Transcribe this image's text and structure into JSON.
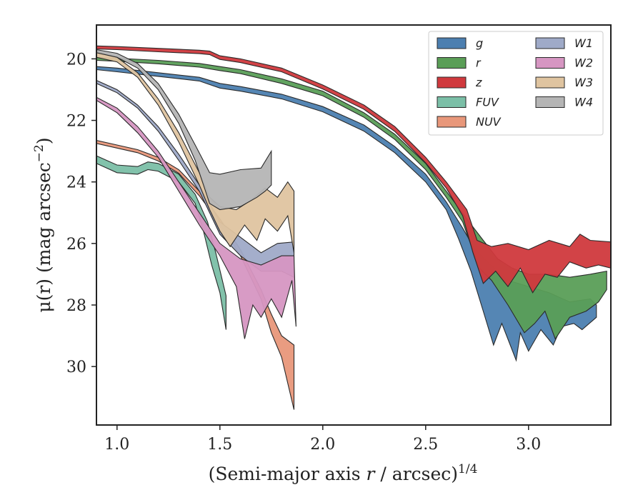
{
  "chart_data": {
    "type": "area",
    "xlabel_prefix": "(Semi-major axis ",
    "xlabel_var": "r",
    "xlabel_suffix": " / arcsec)",
    "xlabel_sup": "1/4",
    "ylabel_main": "μ(r) (mag arcsec",
    "ylabel_sup": "−2",
    "ylabel_close": ")",
    "xlim": [
      0.9,
      3.4
    ],
    "ylim": [
      31.9,
      18.9
    ],
    "y_inverted": true,
    "x_ticks": [
      "1.0",
      "1.5",
      "2.0",
      "2.5",
      "3.0"
    ],
    "x_tick_values": [
      1.0,
      1.5,
      2.0,
      2.5,
      3.0
    ],
    "y_ticks": [
      "20",
      "22",
      "24",
      "26",
      "28",
      "30"
    ],
    "y_tick_values": [
      20,
      22,
      24,
      26,
      28,
      30
    ],
    "grid": false,
    "legend_position": "top-right",
    "legend_columns": 2,
    "series": [
      {
        "name": "g",
        "color": "#4c7fb0",
        "upper": [
          [
            0.9,
            20.25
          ],
          [
            1.0,
            20.3
          ],
          [
            1.2,
            20.45
          ],
          [
            1.4,
            20.6
          ],
          [
            1.5,
            20.8
          ],
          [
            1.6,
            20.9
          ],
          [
            1.8,
            21.15
          ],
          [
            2.0,
            21.55
          ],
          [
            2.2,
            22.15
          ],
          [
            2.35,
            22.85
          ],
          [
            2.5,
            23.75
          ],
          [
            2.6,
            24.65
          ],
          [
            2.68,
            25.5
          ],
          [
            2.74,
            26.2
          ],
          [
            2.8,
            26.6
          ],
          [
            2.9,
            27.2
          ],
          [
            3.0,
            27.4
          ],
          [
            3.1,
            27.6
          ],
          [
            3.2,
            27.9
          ],
          [
            3.3,
            27.8
          ],
          [
            3.33,
            28.0
          ]
        ],
        "lower": [
          [
            0.9,
            20.35
          ],
          [
            1.0,
            20.42
          ],
          [
            1.2,
            20.57
          ],
          [
            1.4,
            20.72
          ],
          [
            1.5,
            20.95
          ],
          [
            1.6,
            21.05
          ],
          [
            1.8,
            21.3
          ],
          [
            2.0,
            21.72
          ],
          [
            2.2,
            22.35
          ],
          [
            2.35,
            23.05
          ],
          [
            2.5,
            24.0
          ],
          [
            2.6,
            24.9
          ],
          [
            2.66,
            25.85
          ],
          [
            2.72,
            26.9
          ],
          [
            2.78,
            28.2
          ],
          [
            2.83,
            29.3
          ],
          [
            2.87,
            28.6
          ],
          [
            2.94,
            29.8
          ],
          [
            2.96,
            28.9
          ],
          [
            3.0,
            29.5
          ],
          [
            3.06,
            28.8
          ],
          [
            3.12,
            29.3
          ],
          [
            3.16,
            28.7
          ],
          [
            3.22,
            28.6
          ],
          [
            3.26,
            28.8
          ],
          [
            3.33,
            28.4
          ]
        ]
      },
      {
        "name": "r",
        "color": "#5a9e57",
        "upper": [
          [
            0.9,
            19.95
          ],
          [
            1.0,
            19.98
          ],
          [
            1.2,
            20.05
          ],
          [
            1.4,
            20.15
          ],
          [
            1.5,
            20.25
          ],
          [
            1.6,
            20.35
          ],
          [
            1.8,
            20.65
          ],
          [
            2.0,
            21.05
          ],
          [
            2.2,
            21.75
          ],
          [
            2.35,
            22.45
          ],
          [
            2.5,
            23.4
          ],
          [
            2.6,
            24.3
          ],
          [
            2.7,
            25.2
          ],
          [
            2.78,
            25.9
          ],
          [
            2.85,
            26.5
          ],
          [
            2.92,
            26.8
          ],
          [
            3.0,
            27.0
          ],
          [
            3.1,
            27.0
          ],
          [
            3.2,
            27.1
          ],
          [
            3.3,
            27.0
          ],
          [
            3.38,
            26.9
          ]
        ],
        "lower": [
          [
            0.9,
            20.05
          ],
          [
            1.0,
            20.08
          ],
          [
            1.2,
            20.16
          ],
          [
            1.4,
            20.27
          ],
          [
            1.5,
            20.38
          ],
          [
            1.6,
            20.48
          ],
          [
            1.8,
            20.8
          ],
          [
            2.0,
            21.2
          ],
          [
            2.2,
            21.9
          ],
          [
            2.35,
            22.62
          ],
          [
            2.5,
            23.6
          ],
          [
            2.6,
            24.5
          ],
          [
            2.68,
            25.3
          ],
          [
            2.76,
            26.8
          ],
          [
            2.82,
            27.2
          ],
          [
            2.9,
            28.0
          ],
          [
            2.98,
            28.9
          ],
          [
            3.03,
            28.6
          ],
          [
            3.08,
            28.2
          ],
          [
            3.13,
            29.1
          ],
          [
            3.2,
            28.4
          ],
          [
            3.28,
            28.2
          ],
          [
            3.34,
            27.9
          ],
          [
            3.38,
            27.5
          ]
        ]
      },
      {
        "name": "z",
        "color": "#d0393d",
        "upper": [
          [
            0.9,
            19.58
          ],
          [
            1.0,
            19.6
          ],
          [
            1.2,
            19.66
          ],
          [
            1.4,
            19.72
          ],
          [
            1.45,
            19.75
          ],
          [
            1.5,
            19.9
          ],
          [
            1.6,
            20.0
          ],
          [
            1.8,
            20.3
          ],
          [
            2.0,
            20.85
          ],
          [
            2.2,
            21.5
          ],
          [
            2.35,
            22.2
          ],
          [
            2.5,
            23.2
          ],
          [
            2.6,
            24.0
          ],
          [
            2.7,
            24.9
          ],
          [
            2.75,
            25.9
          ],
          [
            2.82,
            26.1
          ],
          [
            2.9,
            26.0
          ],
          [
            3.0,
            26.2
          ],
          [
            3.1,
            25.9
          ],
          [
            3.2,
            26.1
          ],
          [
            3.25,
            25.7
          ],
          [
            3.3,
            25.9
          ],
          [
            3.4,
            25.95
          ]
        ],
        "lower": [
          [
            0.9,
            19.68
          ],
          [
            1.0,
            19.7
          ],
          [
            1.2,
            19.77
          ],
          [
            1.4,
            19.83
          ],
          [
            1.45,
            19.86
          ],
          [
            1.5,
            20.02
          ],
          [
            1.6,
            20.12
          ],
          [
            1.8,
            20.42
          ],
          [
            2.0,
            20.98
          ],
          [
            2.2,
            21.64
          ],
          [
            2.35,
            22.36
          ],
          [
            2.5,
            23.38
          ],
          [
            2.6,
            24.2
          ],
          [
            2.68,
            25.1
          ],
          [
            2.73,
            26.3
          ],
          [
            2.78,
            27.3
          ],
          [
            2.84,
            26.9
          ],
          [
            2.9,
            27.4
          ],
          [
            2.96,
            26.8
          ],
          [
            3.02,
            27.6
          ],
          [
            3.08,
            27.0
          ],
          [
            3.14,
            27.1
          ],
          [
            3.2,
            26.6
          ],
          [
            3.28,
            26.8
          ],
          [
            3.34,
            26.7
          ],
          [
            3.4,
            26.8
          ]
        ]
      },
      {
        "name": "FUV",
        "color": "#7bbfa7",
        "upper": [
          [
            0.9,
            23.15
          ],
          [
            1.0,
            23.45
          ],
          [
            1.1,
            23.5
          ],
          [
            1.15,
            23.35
          ],
          [
            1.2,
            23.4
          ],
          [
            1.3,
            23.75
          ],
          [
            1.38,
            24.4
          ],
          [
            1.44,
            25.3
          ],
          [
            1.48,
            26.3
          ],
          [
            1.53,
            27.7
          ]
        ],
        "lower": [
          [
            0.9,
            23.4
          ],
          [
            1.0,
            23.7
          ],
          [
            1.1,
            23.75
          ],
          [
            1.15,
            23.6
          ],
          [
            1.2,
            23.65
          ],
          [
            1.3,
            24.0
          ],
          [
            1.38,
            24.7
          ],
          [
            1.42,
            25.6
          ],
          [
            1.46,
            26.7
          ],
          [
            1.5,
            27.6
          ],
          [
            1.53,
            28.8
          ]
        ]
      },
      {
        "name": "NUV",
        "color": "#e8977a",
        "upper": [
          [
            0.9,
            22.65
          ],
          [
            1.0,
            22.8
          ],
          [
            1.1,
            22.95
          ],
          [
            1.2,
            23.2
          ],
          [
            1.3,
            23.6
          ],
          [
            1.4,
            24.3
          ],
          [
            1.5,
            25.2
          ],
          [
            1.6,
            26.2
          ],
          [
            1.7,
            27.5
          ],
          [
            1.75,
            28.3
          ],
          [
            1.8,
            29.0
          ],
          [
            1.86,
            29.3
          ]
        ],
        "lower": [
          [
            0.9,
            22.75
          ],
          [
            1.0,
            22.9
          ],
          [
            1.1,
            23.05
          ],
          [
            1.2,
            23.32
          ],
          [
            1.3,
            23.72
          ],
          [
            1.4,
            24.45
          ],
          [
            1.5,
            25.35
          ],
          [
            1.6,
            26.4
          ],
          [
            1.7,
            27.8
          ],
          [
            1.75,
            28.9
          ],
          [
            1.8,
            29.7
          ],
          [
            1.86,
            31.4
          ]
        ]
      },
      {
        "name": "W1",
        "color": "#9faac8",
        "upper": [
          [
            0.9,
            20.7
          ],
          [
            1.0,
            21.0
          ],
          [
            1.1,
            21.5
          ],
          [
            1.2,
            22.2
          ],
          [
            1.3,
            23.1
          ],
          [
            1.4,
            24.1
          ],
          [
            1.5,
            25.3
          ],
          [
            1.6,
            25.8
          ],
          [
            1.7,
            26.3
          ],
          [
            1.78,
            26.0
          ],
          [
            1.86,
            25.95
          ]
        ],
        "lower": [
          [
            0.9,
            20.8
          ],
          [
            1.0,
            21.1
          ],
          [
            1.1,
            21.6
          ],
          [
            1.2,
            22.35
          ],
          [
            1.3,
            23.3
          ],
          [
            1.4,
            24.3
          ],
          [
            1.5,
            25.7
          ],
          [
            1.6,
            26.4
          ],
          [
            1.7,
            26.9
          ],
          [
            1.8,
            26.9
          ],
          [
            1.86,
            27.1
          ]
        ]
      },
      {
        "name": "W2",
        "color": "#d696c2",
        "upper": [
          [
            0.9,
            21.25
          ],
          [
            1.0,
            21.6
          ],
          [
            1.1,
            22.2
          ],
          [
            1.2,
            23.0
          ],
          [
            1.3,
            24.0
          ],
          [
            1.4,
            25.0
          ],
          [
            1.5,
            26.0
          ],
          [
            1.6,
            26.5
          ],
          [
            1.7,
            26.7
          ],
          [
            1.8,
            26.4
          ],
          [
            1.86,
            26.4
          ]
        ],
        "lower": [
          [
            0.9,
            21.35
          ],
          [
            1.0,
            21.75
          ],
          [
            1.1,
            22.4
          ],
          [
            1.2,
            23.2
          ],
          [
            1.3,
            24.3
          ],
          [
            1.4,
            25.4
          ],
          [
            1.5,
            26.4
          ],
          [
            1.58,
            27.4
          ],
          [
            1.62,
            29.1
          ],
          [
            1.66,
            28.0
          ],
          [
            1.7,
            28.4
          ],
          [
            1.75,
            27.8
          ],
          [
            1.8,
            28.4
          ],
          [
            1.85,
            27.2
          ],
          [
            1.87,
            28.7
          ]
        ]
      },
      {
        "name": "W3",
        "color": "#dfc4a0",
        "upper": [
          [
            0.9,
            19.75
          ],
          [
            1.0,
            19.95
          ],
          [
            1.1,
            20.45
          ],
          [
            1.2,
            21.3
          ],
          [
            1.3,
            22.4
          ],
          [
            1.4,
            23.7
          ],
          [
            1.45,
            24.5
          ],
          [
            1.5,
            24.8
          ],
          [
            1.58,
            24.9
          ],
          [
            1.65,
            24.6
          ],
          [
            1.72,
            24.2
          ],
          [
            1.78,
            24.5
          ],
          [
            1.83,
            24.0
          ],
          [
            1.86,
            24.3
          ]
        ],
        "lower": [
          [
            0.9,
            19.95
          ],
          [
            1.0,
            20.1
          ],
          [
            1.1,
            20.6
          ],
          [
            1.2,
            21.5
          ],
          [
            1.3,
            22.7
          ],
          [
            1.4,
            24.1
          ],
          [
            1.45,
            24.9
          ],
          [
            1.5,
            25.6
          ],
          [
            1.55,
            26.1
          ],
          [
            1.62,
            25.4
          ],
          [
            1.68,
            25.9
          ],
          [
            1.72,
            25.2
          ],
          [
            1.78,
            25.6
          ],
          [
            1.83,
            25.1
          ],
          [
            1.86,
            26.3
          ]
        ]
      },
      {
        "name": "W4",
        "color": "#b5b5b5",
        "upper": [
          [
            0.9,
            19.7
          ],
          [
            1.0,
            19.82
          ],
          [
            1.1,
            20.15
          ],
          [
            1.2,
            20.8
          ],
          [
            1.3,
            21.8
          ],
          [
            1.38,
            22.8
          ],
          [
            1.45,
            23.7
          ],
          [
            1.5,
            23.75
          ],
          [
            1.6,
            23.6
          ],
          [
            1.7,
            23.55
          ],
          [
            1.75,
            23.0
          ]
        ],
        "lower": [
          [
            0.9,
            19.8
          ],
          [
            1.0,
            19.95
          ],
          [
            1.1,
            20.3
          ],
          [
            1.2,
            21.0
          ],
          [
            1.3,
            22.1
          ],
          [
            1.38,
            23.3
          ],
          [
            1.42,
            24.1
          ],
          [
            1.45,
            24.7
          ],
          [
            1.5,
            24.9
          ],
          [
            1.6,
            24.8
          ],
          [
            1.68,
            24.5
          ],
          [
            1.72,
            24.3
          ],
          [
            1.75,
            24.1
          ]
        ]
      }
    ]
  }
}
